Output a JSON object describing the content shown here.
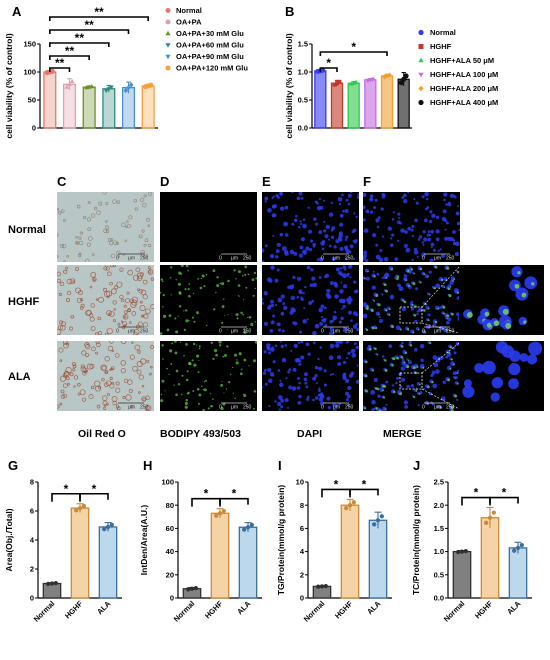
{
  "panels": {
    "A": "A",
    "B": "B",
    "C": "C",
    "D": "D",
    "E": "E",
    "F": "F",
    "G": "G",
    "H": "H",
    "I": "I",
    "J": "J"
  },
  "micrograph": {
    "row_labels": [
      "Normal",
      "HGHF",
      "ALA"
    ],
    "column_labels": [
      "Oil Red O",
      "BODIPY 493/503",
      "DAPI",
      "MERGE"
    ],
    "scale_bar": {
      "zero": "0",
      "unit": "μm",
      "max": "250"
    }
  },
  "chart_data": [
    {
      "id": "A",
      "type": "bar",
      "ylabel": "cell viability (% of control)",
      "ylim": [
        0,
        150
      ],
      "yticks": [
        0,
        50,
        100,
        150
      ],
      "categories": [
        "Normal",
        "OA+PA",
        "OA+PA+30 mM Glu",
        "OA+PA+60 mM Glu",
        "OA+PA+90 mM Glu",
        "OA+PA+120 mM Glu"
      ],
      "values": [
        100,
        78,
        73,
        70,
        72,
        75
      ],
      "errors": [
        2,
        10,
        2,
        6,
        10,
        3
      ],
      "colors": [
        "#E07A6B",
        "#E0A0AE",
        "#6B8E23",
        "#2E8B7E",
        "#4A8FCC",
        "#F4A040"
      ],
      "legend": [
        "Normal",
        "OA+PA",
        "OA+PA+30 mM Glu",
        "OA+PA+60 mM Glu",
        "OA+PA+90 mM Glu",
        "OA+PA+120 mM Glu"
      ],
      "legend_position": "right",
      "significance": [
        "**",
        "**",
        "**",
        "**",
        "**"
      ],
      "grid": false
    },
    {
      "id": "B",
      "type": "bar",
      "ylabel": "cell viability (% of control)",
      "ylim": [
        0,
        1.5
      ],
      "yticks": [
        0.0,
        0.5,
        1.0,
        1.5
      ],
      "categories": [
        "Normal",
        "HGHF",
        "HGHF+ALA 50 μM",
        "HGHF+ALA 100 μM",
        "HGHF+ALA 200 μM",
        "HGHF+ALA 400 μM"
      ],
      "values": [
        1.02,
        0.8,
        0.8,
        0.86,
        0.93,
        0.87
      ],
      "errors": [
        0.02,
        0.05,
        0.03,
        0.02,
        0.03,
        0.12
      ],
      "colors": [
        "#3A3AF0",
        "#C0392B",
        "#2EC84A",
        "#C36BE0",
        "#F0A030",
        "#111111"
      ],
      "legend": [
        "Normal",
        "HGHF",
        "HGHF+ALA 50 μM",
        "HGHF+ALA 100 μM",
        "HGHF+ALA 200 μM",
        "HGHF+ALA 400 μM"
      ],
      "legend_position": "right",
      "significance": [
        "*",
        "*"
      ],
      "grid": false
    },
    {
      "id": "G",
      "type": "bar",
      "ylabel": "Area(Obj./Total)",
      "ylim": [
        0,
        8
      ],
      "yticks": [
        0,
        2,
        4,
        6,
        8
      ],
      "categories": [
        "Normal",
        "HGHF",
        "ALA"
      ],
      "values": [
        1.0,
        6.2,
        4.9
      ],
      "errors": [
        0.05,
        0.3,
        0.3
      ],
      "significance": [
        "*",
        "*"
      ],
      "grid": false
    },
    {
      "id": "H",
      "type": "bar",
      "ylabel": "IntDen/Area(A.U.)",
      "ylim": [
        0,
        100
      ],
      "yticks": [
        0,
        20,
        40,
        60,
        80,
        100
      ],
      "categories": [
        "Normal",
        "HGHF",
        "ALA"
      ],
      "values": [
        8,
        73,
        61
      ],
      "errors": [
        1,
        4,
        4
      ],
      "significance": [
        "*",
        "*"
      ],
      "grid": false
    },
    {
      "id": "I",
      "type": "bar",
      "ylabel": "TG/Protein(mmol/g protein)",
      "ylim": [
        0,
        10
      ],
      "yticks": [
        0,
        2,
        4,
        6,
        8,
        10
      ],
      "categories": [
        "Normal",
        "HGHF",
        "ALA"
      ],
      "values": [
        1.0,
        8.0,
        6.7
      ],
      "errors": [
        0.05,
        0.5,
        0.7
      ],
      "significance": [
        "*",
        "*"
      ],
      "grid": false
    },
    {
      "id": "J",
      "type": "bar",
      "ylabel": "TC/Protein(mmol/g protein)",
      "ylim": [
        0,
        2.5
      ],
      "yticks": [
        0.0,
        0.5,
        1.0,
        1.5,
        2.0,
        2.5
      ],
      "categories": [
        "Normal",
        "HGHF",
        "ALA"
      ],
      "values": [
        1.0,
        1.73,
        1.08
      ],
      "errors": [
        0.02,
        0.22,
        0.12
      ],
      "significance": [
        "*",
        "*"
      ],
      "grid": false
    }
  ],
  "bottom_colors": [
    "#808080",
    "#F5D3A4",
    "#BCD8EC"
  ],
  "bottom_edges": [
    "#303030",
    "#C88A3A",
    "#3C6E9A"
  ]
}
